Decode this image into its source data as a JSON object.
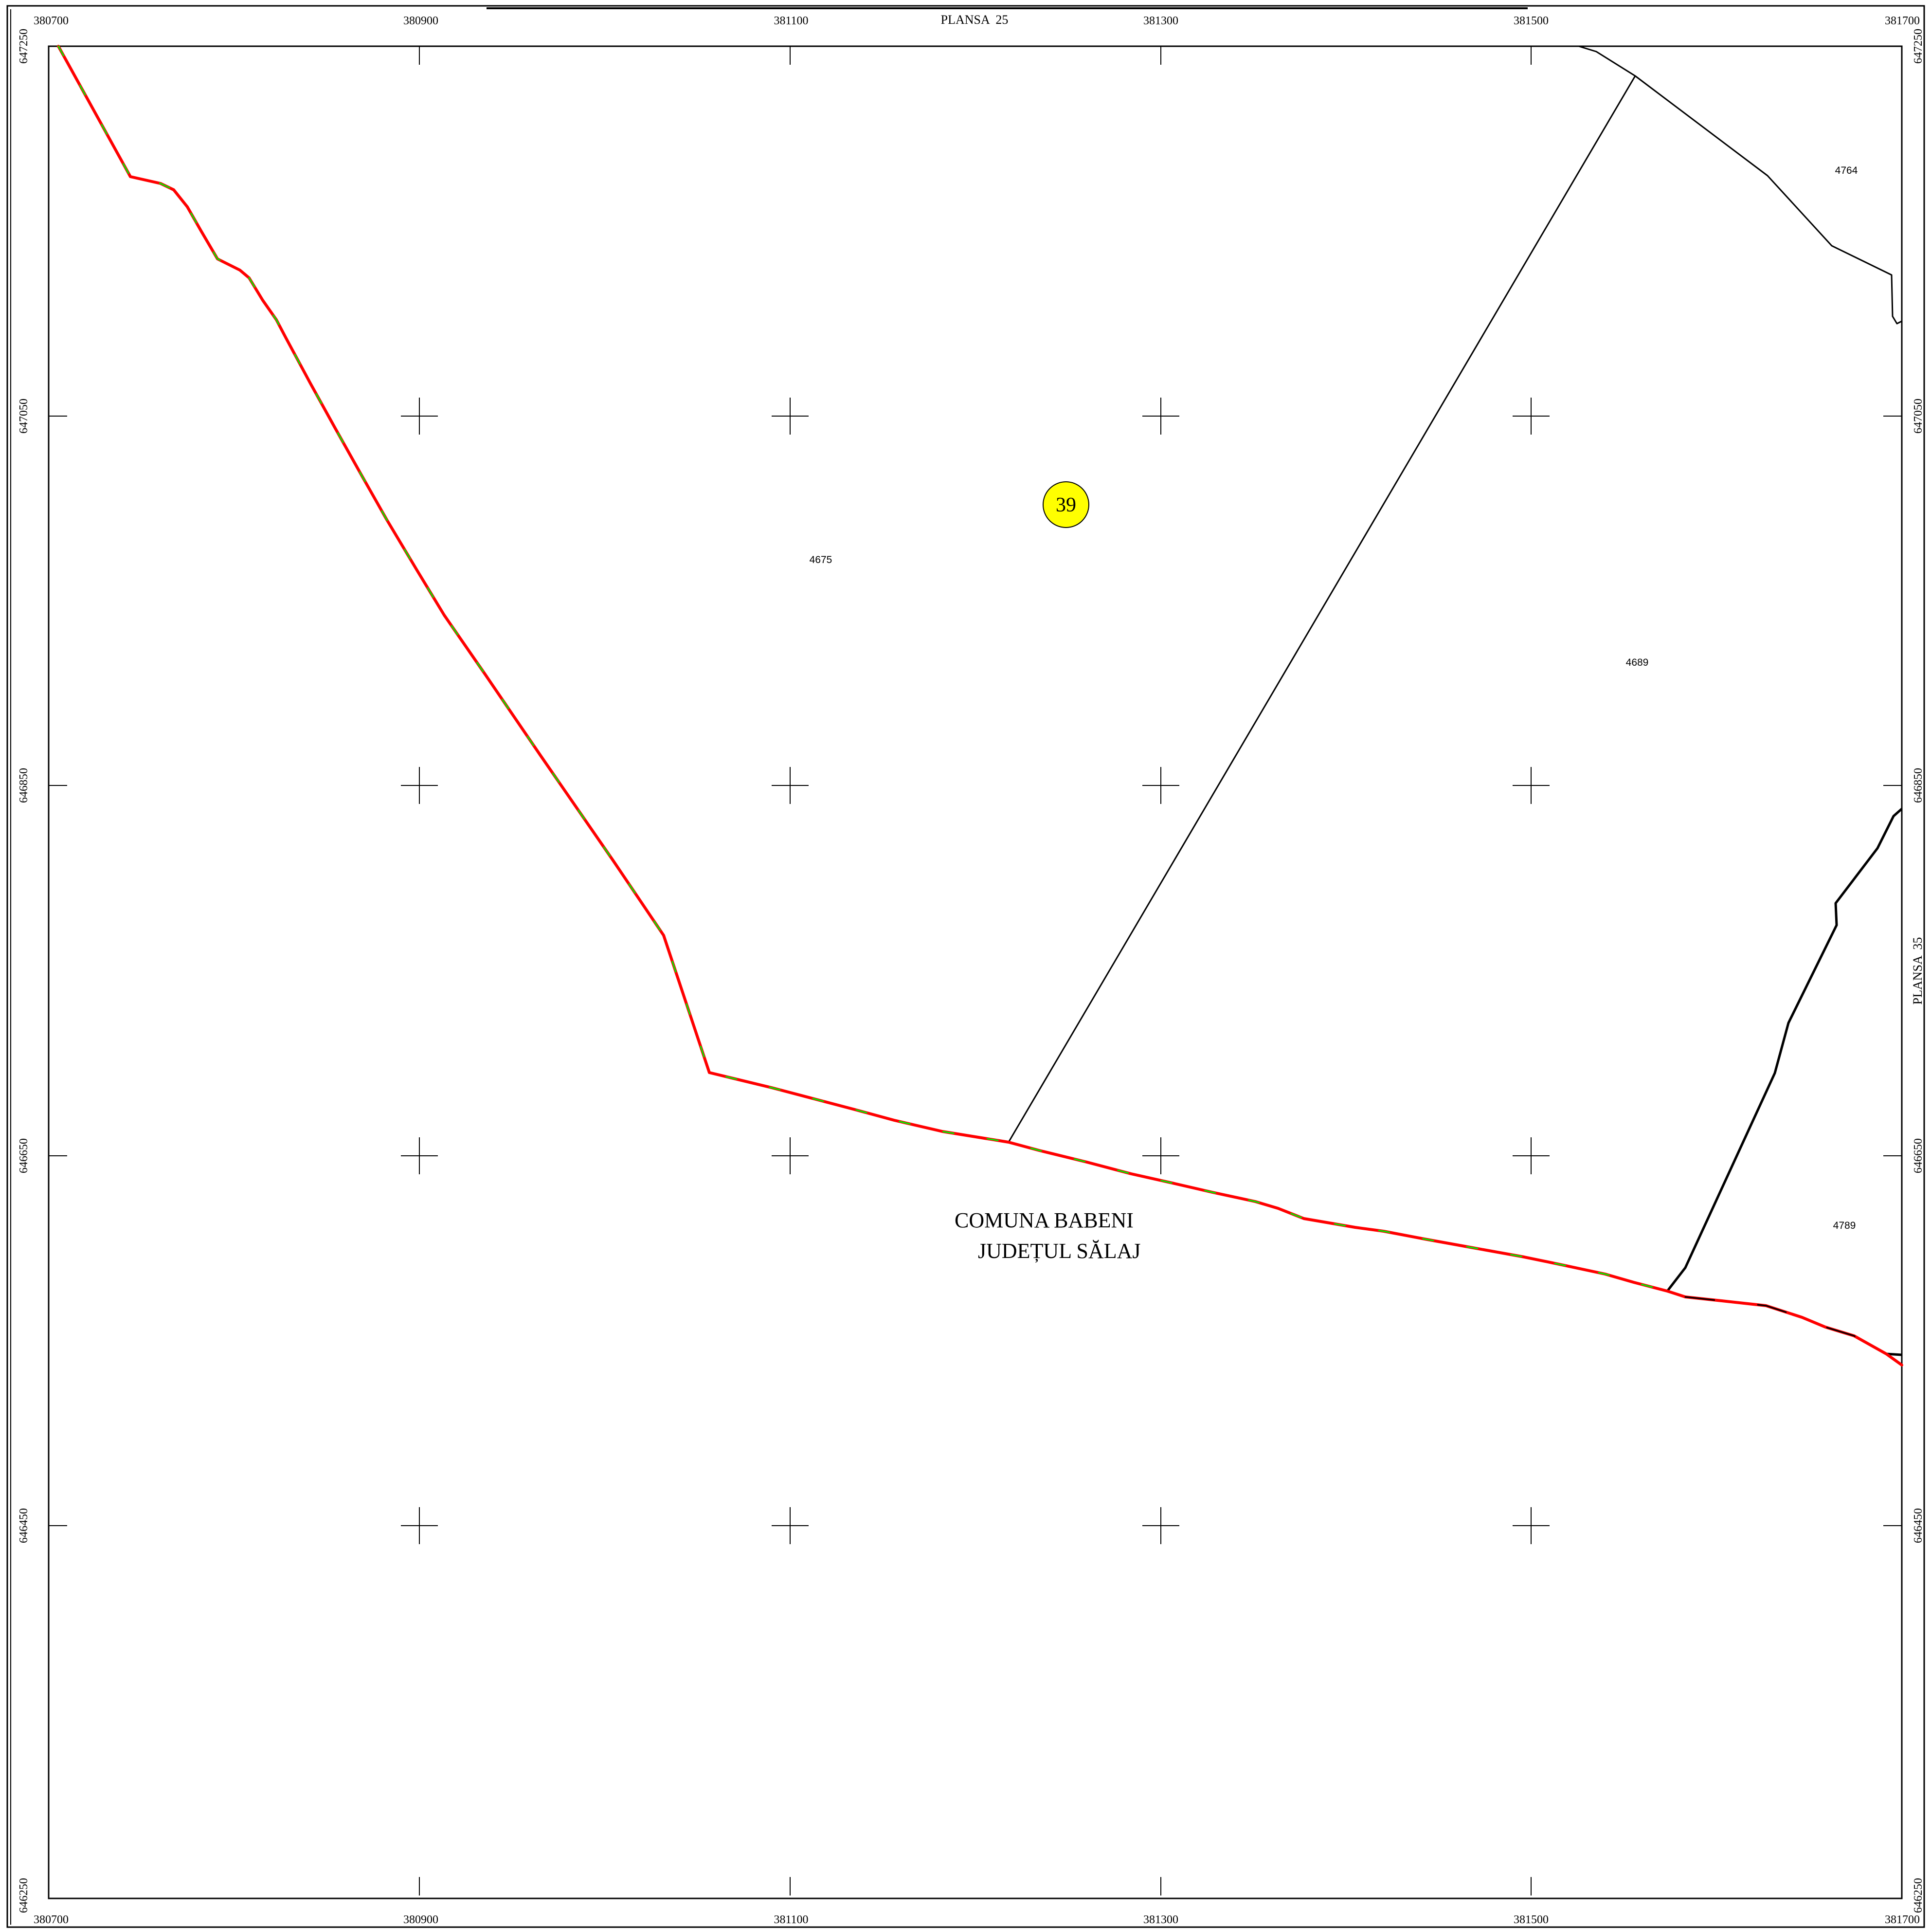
{
  "sheet": {
    "top_neighbor": "PLANSA  25",
    "right_neighbor": "PLANSA  35"
  },
  "grid": {
    "x_labels": [
      "380700",
      "380900",
      "381100",
      "381300",
      "381500",
      "381700"
    ],
    "y_labels": [
      "647250",
      "647050",
      "646850",
      "646650",
      "646450",
      "646250"
    ]
  },
  "marker": {
    "label": "39",
    "color": "#ffff00"
  },
  "parcels": [
    "4764",
    "4675",
    "4689",
    "4789"
  ],
  "admin": {
    "line1": "COMUNA BABENI",
    "line2": "JUDEȚUL SĂLAJ"
  },
  "colors": {
    "boundary_red": "#ff0000",
    "boundary_green": "#00ee00",
    "parcel_line": "#000000",
    "frame": "#000000"
  }
}
